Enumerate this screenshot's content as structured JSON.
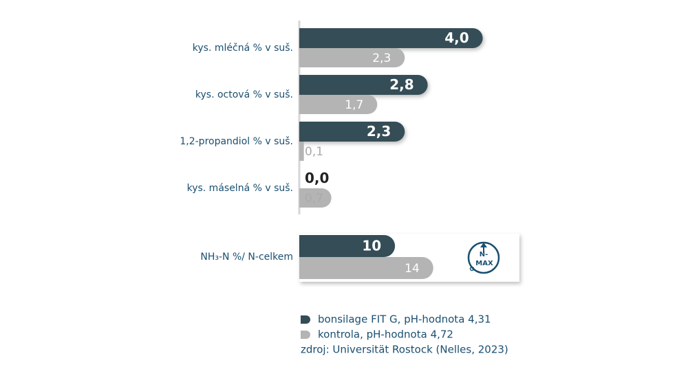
{
  "chart_data": [
    {
      "type": "bar",
      "orientation": "horizontal",
      "categories": [
        "kys. mléčná % v suš.",
        "kys. octová % v suš.",
        "1,2-propandiol % v suš.",
        "kys. máselná % v suš."
      ],
      "series": [
        {
          "name": "bonsilage FIT G, pH-hodnota 4,31",
          "color": "#344d57",
          "values": [
            4.0,
            2.8,
            2.3,
            0.0
          ],
          "value_labels": [
            "4,0",
            "2,8",
            "2,3",
            "0,0"
          ]
        },
        {
          "name": "kontrola, pH-hodnota 4,72",
          "color": "#b4b4b4",
          "values": [
            2.3,
            1.7,
            0.1,
            0.7
          ],
          "value_labels": [
            "2,3",
            "1,7",
            "0,1",
            "0,7"
          ]
        }
      ],
      "xlim": [
        0,
        4.8
      ],
      "source": "zdroj: Universität Rostock (Nelles, 2023)"
    },
    {
      "type": "bar",
      "orientation": "horizontal",
      "categories": [
        "NH₃-N %/ N-celkem"
      ],
      "series": [
        {
          "color": "#344d57",
          "values": [
            10
          ]
        },
        {
          "color": "#b4b4b4",
          "values": [
            14
          ]
        }
      ],
      "xlim": [
        0,
        23
      ],
      "badge": [
        "N-",
        "MAX"
      ]
    }
  ]
}
